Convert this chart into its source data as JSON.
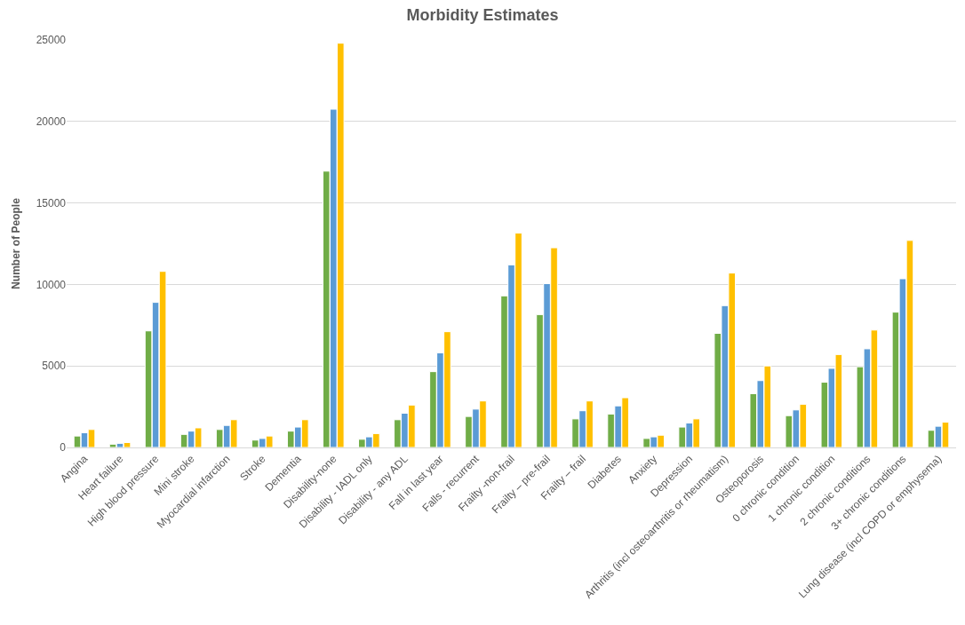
{
  "chart_data": {
    "type": "bar",
    "title": "Morbidity Estimates",
    "ylabel": "Number of People",
    "categories": [
      "Angina",
      "Heart failure",
      "High blood pressure",
      "Mini stroke",
      "Myocardial infarction",
      "Stroke",
      "Dementia",
      "Disability-none",
      "Disability - IADL only",
      "Disability - any ADL",
      "Fall in last year",
      "Falls - recurrent",
      "Frailty -non-frail",
      "Frailty – pre-frail",
      "Frailty – frail",
      "Diabetes",
      "Anxiety",
      "Depression",
      "Arthritis (incl osteoarthritis or rheumatism)",
      "Osteoporosis",
      "0 chronic condition",
      "1 chronic condition",
      "2 chronic conditions",
      "3+ chronic conditions",
      "Lung disease (incl COPD or emphysema)"
    ],
    "series": [
      {
        "color": "#70ad47",
        "values": [
          700,
          200,
          7150,
          800,
          1100,
          450,
          1000,
          16950,
          500,
          1700,
          4650,
          1900,
          9300,
          8150,
          1750,
          2050,
          550,
          1250,
          7000,
          3300,
          1950,
          4000,
          4950,
          8300,
          1050
        ]
      },
      {
        "color": "#5b9bd5",
        "values": [
          900,
          250,
          8900,
          1000,
          1350,
          550,
          1250,
          20750,
          650,
          2100,
          5800,
          2350,
          11200,
          10050,
          2250,
          2550,
          650,
          1500,
          8700,
          4100,
          2300,
          4850,
          6050,
          10350,
          1300
        ]
      },
      {
        "color": "#ffc000",
        "values": [
          1100,
          300,
          10800,
          1200,
          1700,
          700,
          1700,
          24800,
          850,
          2600,
          7100,
          2850,
          13150,
          12250,
          2850,
          3050,
          750,
          1750,
          10700,
          5000,
          2650,
          5700,
          7200,
          12700,
          1550
        ]
      }
    ],
    "ylim": [
      0,
      25000
    ],
    "yticks": [
      0,
      5000,
      10000,
      15000,
      20000,
      25000
    ],
    "grid": "y"
  }
}
